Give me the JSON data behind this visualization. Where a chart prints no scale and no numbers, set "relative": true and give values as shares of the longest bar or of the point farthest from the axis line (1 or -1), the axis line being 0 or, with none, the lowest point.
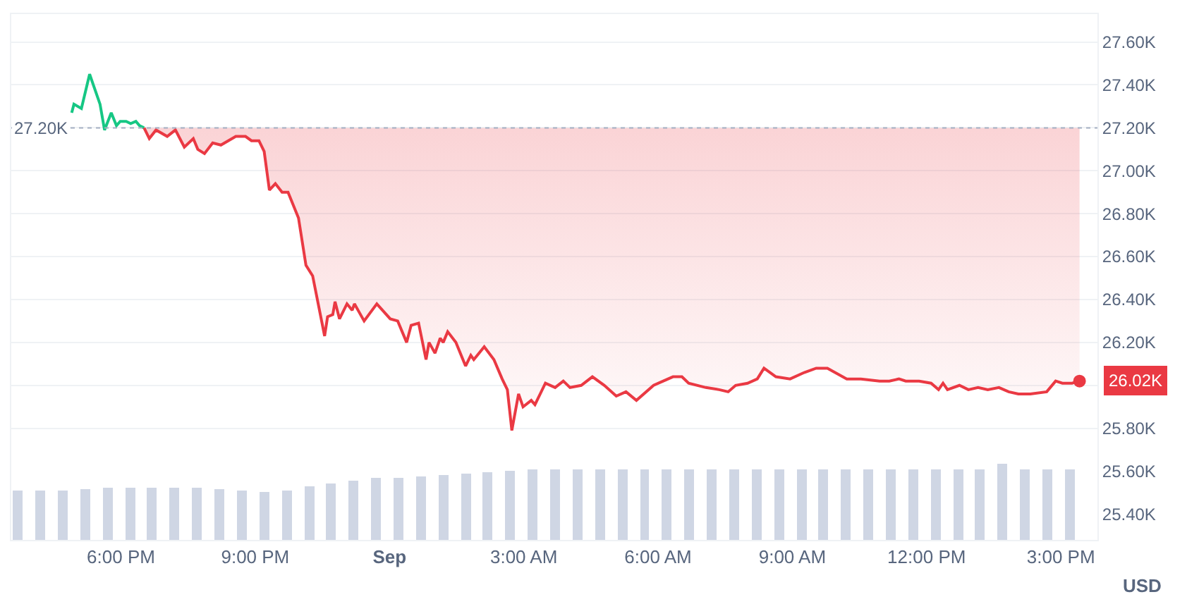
{
  "chart_data": [
    {
      "type": "line",
      "xlim": [
        "--08-31T15:33",
        "--09-01T15:49"
      ],
      "ylim": [
        25280,
        27730
      ],
      "xticks": [
        {
          "value": "--08-31T18:00",
          "label": "6:00 PM"
        },
        {
          "value": "--08-31T21:00",
          "label": "9:00 PM"
        },
        {
          "value": "--09-01T00:00",
          "label": "Sep"
        },
        {
          "value": "--09-01T03:00",
          "label": "3:00 AM"
        },
        {
          "value": "--09-01T06:00",
          "label": "6:00 AM"
        },
        {
          "value": "--09-01T09:00",
          "label": "9:00 AM"
        },
        {
          "value": "--09-01T12:00",
          "label": "12:00 PM"
        },
        {
          "value": "--09-01T15:00",
          "label": "3:00 PM"
        }
      ],
      "yticks": [
        {
          "value": 25400,
          "label": "25.40K"
        },
        {
          "value": 25600,
          "label": "25.60K"
        },
        {
          "value": 25800,
          "label": "25.80K"
        },
        {
          "value": 26000,
          "label": null
        },
        {
          "value": 26200,
          "label": "26.20K"
        },
        {
          "value": 26400,
          "label": "26.40K"
        },
        {
          "value": 26600,
          "label": "26.60K"
        },
        {
          "value": 26800,
          "label": "26.80K"
        },
        {
          "value": 27000,
          "label": "27.00K"
        },
        {
          "value": 27200,
          "label": "27.20K"
        },
        {
          "value": 27400,
          "label": "27.40K"
        },
        {
          "value": 27600,
          "label": "27.60K"
        }
      ],
      "ylabel": "USD",
      "grid": "y",
      "ref_lines": [
        {
          "axis": "y",
          "value": 27200,
          "label": "27.20K",
          "color": "#a6b0c3",
          "line_style": "dotted"
        }
      ],
      "annotations": [
        {
          "text": "26.02K",
          "x": "--09-01T15:25",
          "y": 26020
        }
      ],
      "series": [
        {
          "color": "#16c784",
          "x": [
            "--08-31T16:54",
            "--08-31T16:57",
            "--08-31T17:07",
            "--08-31T17:18",
            "--08-31T17:32",
            "--08-31T17:38",
            "--08-31T17:47",
            "--08-31T17:54",
            "--08-31T17:59",
            "--08-31T18:07",
            "--08-31T18:13",
            "--08-31T18:20",
            "--08-31T18:25",
            "--08-31T18:31"
          ],
          "values": [
            27270,
            27310,
            27290,
            27450,
            27310,
            27190,
            27270,
            27210,
            27230,
            27230,
            27220,
            27230,
            27210,
            27200
          ]
        },
        {
          "color": "#ea3943",
          "x": [
            "--08-31T18:31",
            "--08-31T18:38",
            "--08-31T18:47",
            "--08-31T19:02",
            "--08-31T19:13",
            "--08-31T19:25",
            "--08-31T19:37",
            "--08-31T19:43",
            "--08-31T19:52",
            "--08-31T20:03",
            "--08-31T20:14",
            "--08-31T20:34",
            "--08-31T20:47",
            "--08-31T20:55",
            "--08-31T21:05",
            "--08-31T21:12",
            "--08-31T21:19",
            "--08-31T21:27",
            "--08-31T21:36",
            "--08-31T21:44",
            "--08-31T21:58",
            "--08-31T22:08",
            "--08-31T22:17",
            "--08-31T22:33",
            "--08-31T22:37",
            "--08-31T22:44",
            "--08-31T22:47",
            "--08-31T22:53",
            "--08-31T23:03",
            "--08-31T23:10",
            "--08-31T23:13",
            "--08-31T23:26",
            "--08-31T23:43",
            "--09-01T00:01",
            "--09-01T00:11",
            "--09-01T00:23",
            "--09-01T00:29",
            "--09-01T00:39",
            "--09-01T00:49",
            "--09-01T00:53",
            "--09-01T01:01",
            "--09-01T01:08",
            "--09-01T01:12",
            "--09-01T01:18",
            "--09-01T01:29",
            "--09-01T01:42",
            "--09-01T01:49",
            "--09-01T01:53",
            "--09-01T02:07",
            "--09-01T02:20",
            "--09-01T02:31",
            "--09-01T02:38",
            "--09-01T02:44",
            "--09-01T02:53",
            "--09-01T02:59",
            "--09-01T03:10",
            "--09-01T03:15",
            "--09-01T03:29",
            "--09-01T03:42",
            "--09-01T03:53",
            "--09-01T04:02",
            "--09-01T04:17",
            "--09-01T04:32",
            "--09-01T04:48",
            "--09-01T05:04",
            "--09-01T05:17",
            "--09-01T05:31",
            "--09-01T05:54",
            "--09-01T06:07",
            "--09-01T06:20",
            "--09-01T06:32",
            "--09-01T06:41",
            "--09-01T07:04",
            "--09-01T07:22",
            "--09-01T07:34",
            "--09-01T07:44",
            "--09-01T08:00",
            "--09-01T08:13",
            "--09-01T08:22",
            "--09-01T08:38",
            "--09-01T08:57",
            "--09-01T09:16",
            "--09-01T09:32",
            "--09-01T09:47",
            "--09-01T10:13",
            "--09-01T10:32",
            "--09-01T10:57",
            "--09-01T11:10",
            "--09-01T11:23",
            "--09-01T11:32",
            "--09-01T11:50",
            "--09-01T12:06",
            "--09-01T12:16",
            "--09-01T12:22",
            "--09-01T12:28",
            "--09-01T12:44",
            "--09-01T12:56",
            "--09-01T13:09",
            "--09-01T13:22",
            "--09-01T13:37",
            "--09-01T13:50",
            "--09-01T14:03",
            "--09-01T14:19",
            "--09-01T14:41",
            "--09-01T14:53",
            "--09-01T15:02",
            "--09-01T15:15",
            "--09-01T15:25"
          ],
          "values": [
            27200,
            27150,
            27190,
            27160,
            27190,
            27110,
            27150,
            27100,
            27080,
            27130,
            27120,
            27160,
            27160,
            27140,
            27140,
            27090,
            26910,
            26940,
            26900,
            26900,
            26780,
            26560,
            26510,
            26230,
            26320,
            26330,
            26390,
            26310,
            26380,
            26350,
            26380,
            26300,
            26380,
            26310,
            26300,
            26200,
            26280,
            26290,
            26120,
            26200,
            26150,
            26220,
            26200,
            26250,
            26200,
            26090,
            26140,
            26120,
            26180,
            26120,
            26030,
            25980,
            25790,
            25960,
            25900,
            25930,
            25910,
            26010,
            25990,
            26020,
            25990,
            26000,
            26040,
            26000,
            25950,
            25970,
            25930,
            26000,
            26020,
            26040,
            26040,
            26010,
            25990,
            25980,
            25970,
            26000,
            26010,
            26030,
            26080,
            26040,
            26030,
            26060,
            26080,
            26080,
            26030,
            26030,
            26020,
            26020,
            26030,
            26020,
            26020,
            26010,
            25980,
            26010,
            25980,
            26000,
            25980,
            25990,
            25980,
            25990,
            25970,
            25960,
            25960,
            25970,
            26020,
            26010,
            26010,
            26020
          ],
          "lower": [
            27200,
            27150,
            27190,
            27160,
            27190,
            27110,
            27150,
            27100,
            27080,
            27130,
            27120,
            27160,
            27160,
            27140,
            27140,
            27090,
            26910,
            26940,
            26900,
            26900,
            26780,
            26560,
            26510,
            26230,
            26320,
            26330,
            26390,
            26310,
            26380,
            26350,
            26380,
            26300,
            26380,
            26310,
            26300,
            26200,
            26280,
            26290,
            26120,
            26200,
            26150,
            26220,
            26200,
            26250,
            26200,
            26090,
            26140,
            26120,
            26180,
            26120,
            26030,
            25980,
            25790,
            25960,
            25900,
            25930,
            25910,
            26010,
            25990,
            26020,
            25990,
            26000,
            26040,
            26000,
            25950,
            25970,
            25930,
            26000,
            26020,
            26040,
            26040,
            26010,
            25990,
            25980,
            25970,
            26000,
            26010,
            26030,
            26080,
            26040,
            26030,
            26060,
            26080,
            26080,
            26030,
            26030,
            26020,
            26020,
            26030,
            26020,
            26020,
            26010,
            25980,
            26010,
            25980,
            26000,
            25980,
            25990,
            25980,
            25990,
            25970,
            25960,
            25960,
            25970,
            26020,
            26010,
            26010,
            26020
          ],
          "upper": [
            27200,
            27200,
            27200,
            27200,
            27200,
            27200,
            27200,
            27200,
            27200,
            27200,
            27200,
            27200,
            27200,
            27200,
            27200,
            27200,
            27200,
            27200,
            27200,
            27200,
            27200,
            27200,
            27200,
            27200,
            27200,
            27200,
            27200,
            27200,
            27200,
            27200,
            27200,
            27200,
            27200,
            27200,
            27200,
            27200,
            27200,
            27200,
            27200,
            27200,
            27200,
            27200,
            27200,
            27200,
            27200,
            27200,
            27200,
            27200,
            27200,
            27200,
            27200,
            27200,
            27200,
            27200,
            27200,
            27200,
            27200,
            27200,
            27200,
            27200,
            27200,
            27200,
            27200,
            27200,
            27200,
            27200,
            27200,
            27200,
            27200,
            27200,
            27200,
            27200,
            27200,
            27200,
            27200,
            27200,
            27200,
            27200,
            27200,
            27200,
            27200,
            27200,
            27200,
            27200,
            27200,
            27200,
            27200,
            27200,
            27200,
            27200,
            27200,
            27200,
            27200,
            27200,
            27200,
            27200,
            27200,
            27200,
            27200,
            27200,
            27200,
            27200,
            27200,
            27200,
            27200,
            27200,
            27200,
            27200
          ]
        }
      ]
    },
    {
      "type": "bar",
      "relative": true,
      "tick_labels": false,
      "xlim": [
        "--08-31T15:33",
        "--09-01T15:49"
      ],
      "color": "#cfd6e4",
      "x": [
        "--08-31T15:42",
        "--08-31T16:12",
        "--08-31T16:42",
        "--08-31T17:12",
        "--08-31T17:42",
        "--08-31T18:12",
        "--08-31T18:42",
        "--08-31T19:12",
        "--08-31T19:42",
        "--08-31T20:12",
        "--08-31T20:42",
        "--08-31T21:12",
        "--08-31T21:42",
        "--08-31T22:12",
        "--08-31T22:42",
        "--08-31T23:12",
        "--08-31T23:42",
        "--09-01T00:12",
        "--09-01T00:42",
        "--09-01T01:12",
        "--09-01T01:42",
        "--09-01T02:12",
        "--09-01T02:42",
        "--09-01T03:12",
        "--09-01T03:42",
        "--09-01T04:12",
        "--09-01T04:42",
        "--09-01T05:12",
        "--09-01T05:42",
        "--09-01T06:12",
        "--09-01T06:42",
        "--09-01T07:12",
        "--09-01T07:42",
        "--09-01T08:12",
        "--09-01T08:42",
        "--09-01T09:12",
        "--09-01T09:42",
        "--09-01T10:12",
        "--09-01T10:42",
        "--09-01T11:12",
        "--09-01T11:42",
        "--09-01T12:12",
        "--09-01T12:42",
        "--09-01T13:12",
        "--09-01T13:42",
        "--09-01T14:12",
        "--09-01T14:42",
        "--09-01T15:12"
      ],
      "values": [
        0.65,
        0.65,
        0.65,
        0.66,
        0.68,
        0.69,
        0.69,
        0.68,
        0.68,
        0.67,
        0.65,
        0.63,
        0.64,
        0.7,
        0.74,
        0.78,
        0.81,
        0.82,
        0.84,
        0.86,
        0.87,
        0.88,
        0.91,
        0.93,
        0.93,
        0.93,
        0.93,
        0.93,
        0.93,
        0.93,
        0.93,
        0.93,
        0.93,
        0.93,
        0.93,
        0.93,
        0.93,
        0.93,
        0.93,
        0.93,
        0.93,
        0.93,
        0.93,
        0.93,
        1.0,
        0.93,
        0.93,
        0.93
      ]
    }
  ]
}
